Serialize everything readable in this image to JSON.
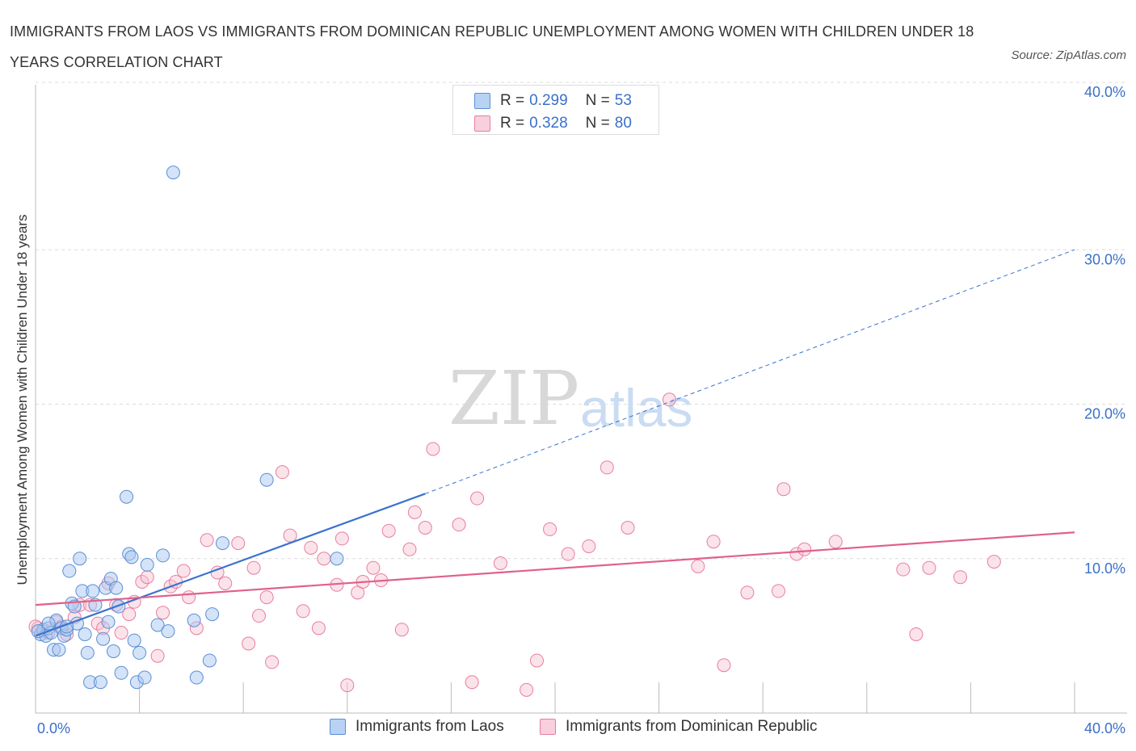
{
  "title": "IMMIGRANTS FROM LAOS VS IMMIGRANTS FROM DOMINICAN REPUBLIC UNEMPLOYMENT AMONG WOMEN WITH CHILDREN UNDER 18 YEARS CORRELATION CHART",
  "source": "Source: ZipAtlas.com",
  "watermark": {
    "zip": "ZIP",
    "atlas": "atlas"
  },
  "legend_top": [
    {
      "r_label": "R =",
      "r_value": "0.299",
      "n_label": "N =",
      "n_value": "53"
    },
    {
      "r_label": "R =",
      "r_value": "0.328",
      "n_label": "N =",
      "n_value": "80"
    }
  ],
  "colors": {
    "laos_fill": "#aac8f0",
    "laos_stroke": "#5b8fd6",
    "laos_line": "#3a72d0",
    "dom_fill": "#f6c0d0",
    "dom_stroke": "#e87ea0",
    "dom_line": "#e0608c",
    "tick_text": "#3a70c8",
    "grid": "#dcdcdc"
  },
  "chart_data": {
    "type": "scatter",
    "title": "IMMIGRANTS FROM LAOS VS IMMIGRANTS FROM DOMINICAN REPUBLIC UNEMPLOYMENT AMONG WOMEN WITH CHILDREN UNDER 18 YEARS CORRELATION CHART",
    "xlabel": "",
    "ylabel": "Unemployment Among Women with Children Under 18 years",
    "xlim": [
      0,
      40
    ],
    "ylim": [
      0,
      40
    ],
    "x_tick_labels": [
      "0.0%",
      "40.0%"
    ],
    "y_ticks": [
      10,
      20,
      30,
      40
    ],
    "y_tick_labels": [
      "10.0%",
      "20.0%",
      "30.0%",
      "40.0%"
    ],
    "grid": true,
    "legend_position": "bottom",
    "series": [
      {
        "name": "Immigrants from Laos",
        "r": 0.299,
        "n": 53,
        "trend": {
          "x0": 0,
          "y0": 5.0,
          "x1": 15.0,
          "y1": 14.2,
          "dashed_to_x": 40.0,
          "dashed_to_y": 30.0
        },
        "points": [
          [
            0.2,
            5.1
          ],
          [
            0.3,
            5.4
          ],
          [
            0.4,
            5.0
          ],
          [
            0.5,
            5.5
          ],
          [
            0.6,
            5.2
          ],
          [
            0.7,
            4.1
          ],
          [
            0.8,
            6.0
          ],
          [
            0.9,
            4.1
          ],
          [
            1.0,
            5.5
          ],
          [
            1.1,
            5.0
          ],
          [
            1.2,
            5.4
          ],
          [
            1.3,
            9.2
          ],
          [
            1.4,
            7.1
          ],
          [
            1.5,
            6.9
          ],
          [
            1.6,
            5.8
          ],
          [
            1.7,
            10.0
          ],
          [
            1.8,
            7.9
          ],
          [
            1.9,
            5.1
          ],
          [
            2.0,
            3.9
          ],
          [
            2.1,
            2.0
          ],
          [
            2.2,
            7.9
          ],
          [
            2.3,
            7.0
          ],
          [
            2.5,
            2.0
          ],
          [
            2.6,
            4.8
          ],
          [
            2.7,
            8.1
          ],
          [
            2.8,
            5.9
          ],
          [
            2.9,
            8.7
          ],
          [
            3.0,
            4.0
          ],
          [
            3.1,
            8.1
          ],
          [
            3.2,
            6.9
          ],
          [
            3.3,
            2.6
          ],
          [
            3.5,
            14.0
          ],
          [
            3.6,
            10.3
          ],
          [
            3.7,
            10.1
          ],
          [
            3.8,
            4.7
          ],
          [
            3.9,
            2.0
          ],
          [
            4.0,
            3.9
          ],
          [
            4.2,
            2.3
          ],
          [
            4.3,
            9.6
          ],
          [
            4.7,
            5.7
          ],
          [
            4.9,
            10.2
          ],
          [
            5.1,
            5.3
          ],
          [
            5.3,
            35.0
          ],
          [
            6.1,
            6.0
          ],
          [
            6.2,
            2.3
          ],
          [
            6.7,
            3.4
          ],
          [
            6.8,
            6.4
          ],
          [
            7.2,
            11.0
          ],
          [
            8.9,
            15.1
          ],
          [
            11.6,
            10.0
          ],
          [
            0.1,
            5.3
          ],
          [
            0.5,
            5.8
          ],
          [
            1.2,
            5.6
          ]
        ]
      },
      {
        "name": "Immigrants from Dominican Republic",
        "r": 0.328,
        "n": 80,
        "trend": {
          "x0": 0,
          "y0": 7.0,
          "x1": 40.0,
          "y1": 11.7
        },
        "points": [
          [
            0.1,
            5.5
          ],
          [
            0.3,
            5.3
          ],
          [
            0.5,
            5.2
          ],
          [
            0.8,
            5.9
          ],
          [
            1.0,
            5.6
          ],
          [
            1.2,
            5.1
          ],
          [
            1.5,
            6.2
          ],
          [
            1.7,
            7.0
          ],
          [
            2.1,
            7.0
          ],
          [
            2.4,
            5.8
          ],
          [
            2.6,
            5.5
          ],
          [
            2.8,
            8.4
          ],
          [
            3.1,
            7.0
          ],
          [
            3.3,
            5.2
          ],
          [
            3.6,
            6.4
          ],
          [
            3.8,
            7.2
          ],
          [
            4.1,
            8.5
          ],
          [
            4.3,
            8.8
          ],
          [
            4.7,
            3.7
          ],
          [
            4.9,
            6.5
          ],
          [
            5.2,
            8.2
          ],
          [
            5.4,
            8.5
          ],
          [
            5.7,
            9.2
          ],
          [
            5.9,
            7.5
          ],
          [
            6.2,
            5.5
          ],
          [
            6.6,
            11.2
          ],
          [
            7.0,
            9.1
          ],
          [
            7.3,
            8.4
          ],
          [
            7.8,
            11.0
          ],
          [
            8.2,
            4.5
          ],
          [
            8.4,
            9.4
          ],
          [
            8.6,
            6.3
          ],
          [
            8.9,
            7.5
          ],
          [
            9.1,
            3.3
          ],
          [
            9.5,
            15.6
          ],
          [
            9.8,
            11.5
          ],
          [
            10.3,
            6.6
          ],
          [
            10.6,
            10.7
          ],
          [
            10.9,
            5.5
          ],
          [
            11.1,
            10.0
          ],
          [
            11.6,
            8.3
          ],
          [
            11.8,
            11.3
          ],
          [
            12.0,
            1.8
          ],
          [
            12.4,
            7.8
          ],
          [
            12.6,
            8.5
          ],
          [
            13.0,
            9.4
          ],
          [
            13.3,
            8.6
          ],
          [
            13.6,
            11.8
          ],
          [
            14.1,
            5.4
          ],
          [
            14.4,
            10.6
          ],
          [
            14.6,
            13.0
          ],
          [
            15.0,
            12.0
          ],
          [
            15.3,
            17.1
          ],
          [
            16.3,
            12.2
          ],
          [
            16.8,
            2.0
          ],
          [
            17.0,
            13.9
          ],
          [
            17.9,
            9.7
          ],
          [
            18.9,
            1.5
          ],
          [
            19.3,
            3.4
          ],
          [
            19.8,
            11.9
          ],
          [
            20.5,
            10.3
          ],
          [
            21.3,
            10.8
          ],
          [
            22.0,
            15.9
          ],
          [
            22.8,
            12.0
          ],
          [
            24.4,
            20.3
          ],
          [
            25.5,
            9.5
          ],
          [
            26.1,
            11.1
          ],
          [
            26.5,
            3.1
          ],
          [
            27.4,
            7.8
          ],
          [
            28.8,
            14.5
          ],
          [
            28.6,
            7.9
          ],
          [
            29.3,
            10.3
          ],
          [
            29.6,
            10.6
          ],
          [
            30.8,
            11.1
          ],
          [
            33.4,
            9.3
          ],
          [
            33.9,
            5.1
          ],
          [
            34.4,
            9.4
          ],
          [
            35.6,
            8.8
          ],
          [
            36.9,
            9.8
          ],
          [
            0.0,
            5.6
          ]
        ]
      }
    ]
  },
  "bottom_legend": [
    {
      "label": "Immigrants from Laos"
    },
    {
      "label": "Immigrants from Dominican Republic"
    }
  ]
}
